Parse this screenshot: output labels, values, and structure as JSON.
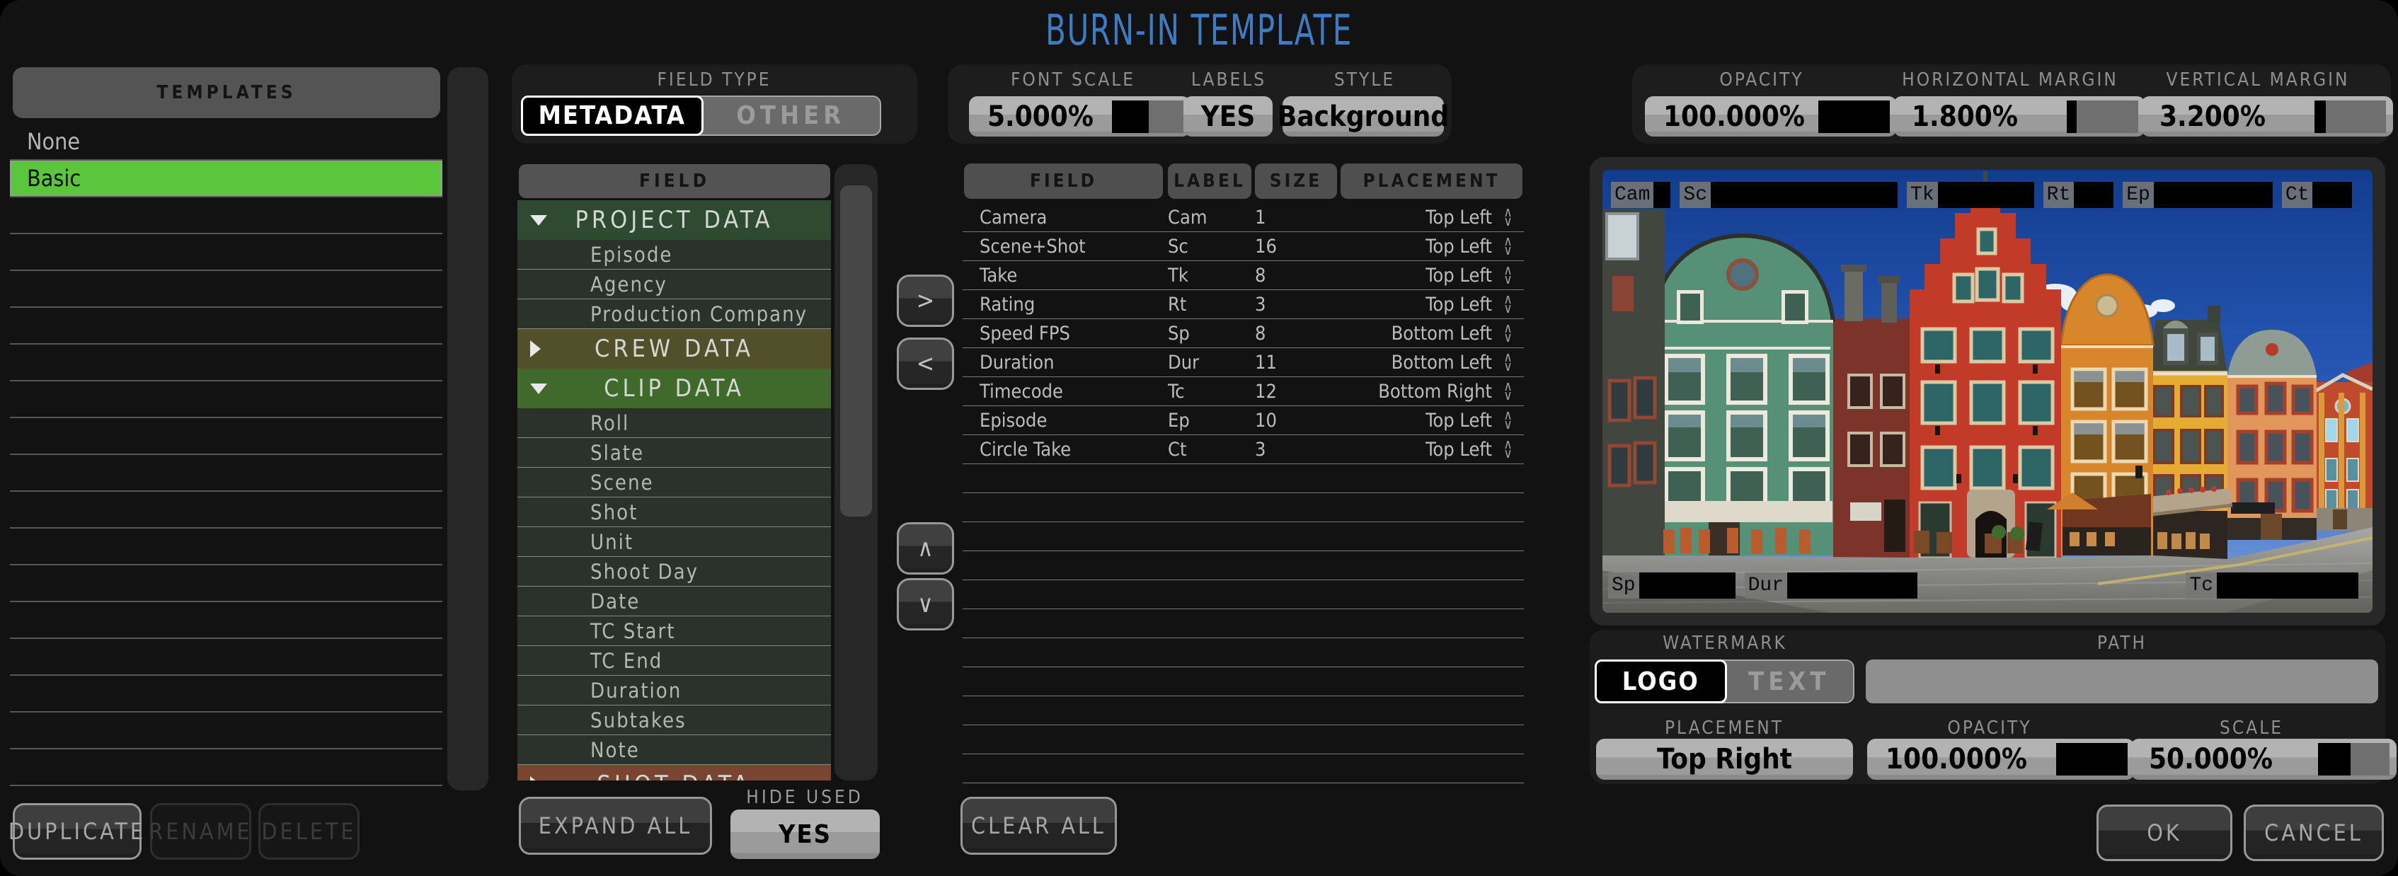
{
  "title": "BURN-IN TEMPLATE",
  "colors": {
    "accent_blue": "#3d7cc2",
    "selection_green": "#5bc63c"
  },
  "templates": {
    "header": "TEMPLATES",
    "items": [
      {
        "label": "None",
        "selected": false
      },
      {
        "label": "Basic",
        "selected": true
      }
    ],
    "duplicate": "DUPLICATE",
    "rename": "RENAME",
    "delete": "DELETE"
  },
  "field_type": {
    "label": "FIELD TYPE",
    "metadata": "METADATA",
    "other": "OTHER",
    "selected": "METADATA"
  },
  "settings": {
    "font_scale": {
      "label": "FONT SCALE",
      "value": "5.000%"
    },
    "labels": {
      "label": "LABELS",
      "value": "YES"
    },
    "style": {
      "label": "STYLE",
      "value": "Background"
    },
    "opacity": {
      "label": "OPACITY",
      "value": "100.000%"
    },
    "horizontal_margin": {
      "label": "HORIZONTAL MARGIN",
      "value": "1.800%"
    },
    "vertical_margin": {
      "label": "VERTICAL MARGIN",
      "value": "3.200%"
    }
  },
  "field_tree": {
    "header": "FIELD",
    "groups": [
      {
        "label": "PROJECT DATA",
        "expanded": true,
        "color": "#2e4a31",
        "items": [
          "Episode",
          "Agency",
          "Production Company"
        ]
      },
      {
        "label": "CREW DATA",
        "expanded": false,
        "color": "#52502a",
        "items": []
      },
      {
        "label": "CLIP DATA",
        "expanded": true,
        "color": "#3f6a2c",
        "items": [
          "Roll",
          "Slate",
          "Scene",
          "Shot",
          "Unit",
          "Shoot Day",
          "Date",
          "TC Start",
          "TC End",
          "Duration",
          "Subtakes",
          "Note"
        ]
      },
      {
        "label": "SHOT DATA",
        "expanded": false,
        "color": "#7a4530",
        "items": []
      }
    ],
    "expand_all": "EXPAND ALL",
    "hide_used_label": "HIDE USED",
    "hide_used_value": "YES"
  },
  "transfer": {
    "add": ">",
    "remove": "<",
    "up": "∧",
    "down": "∨"
  },
  "used_fields": {
    "columns": [
      "FIELD",
      "LABEL",
      "SIZE",
      "PLACEMENT"
    ],
    "rows": [
      {
        "field": "Camera",
        "label": "Cam",
        "size": "1",
        "placement": "Top Left"
      },
      {
        "field": "Scene+Shot",
        "label": "Sc",
        "size": "16",
        "placement": "Top Left"
      },
      {
        "field": "Take",
        "label": "Tk",
        "size": "8",
        "placement": "Top Left"
      },
      {
        "field": "Rating",
        "label": "Rt",
        "size": "3",
        "placement": "Top Left"
      },
      {
        "field": "Speed FPS",
        "label": "Sp",
        "size": "8",
        "placement": "Bottom Left"
      },
      {
        "field": "Duration",
        "label": "Dur",
        "size": "11",
        "placement": "Bottom Left"
      },
      {
        "field": "Timecode",
        "label": "Tc",
        "size": "12",
        "placement": "Bottom Right"
      },
      {
        "field": "Episode",
        "label": "Ep",
        "size": "10",
        "placement": "Top Left"
      },
      {
        "field": "Circle Take",
        "label": "Ct",
        "size": "3",
        "placement": "Top Left"
      }
    ],
    "clear_all": "CLEAR ALL"
  },
  "preview": {
    "burnins_top": [
      {
        "label": "Cam",
        "size": 1
      },
      {
        "label": "Sc",
        "size": 16
      },
      {
        "label": "Tk",
        "size": 8
      },
      {
        "label": "Rt",
        "size": 3
      },
      {
        "label": "Ep",
        "size": 10
      },
      {
        "label": "Ct",
        "size": 3
      }
    ],
    "burnins_bottom_left": [
      {
        "label": "Sp",
        "size": 8
      },
      {
        "label": "Dur",
        "size": 11
      }
    ],
    "burnins_bottom_right": [
      {
        "label": "Tc",
        "size": 12
      }
    ]
  },
  "watermark": {
    "header": "WATERMARK",
    "logo": "LOGO",
    "text": "TEXT",
    "selected": "LOGO",
    "path_label": "PATH",
    "path_value": "",
    "placement": {
      "label": "PLACEMENT",
      "value": "Top Right"
    },
    "opacity": {
      "label": "OPACITY",
      "value": "100.000%"
    },
    "scale": {
      "label": "SCALE",
      "value": "50.000%"
    }
  },
  "actions": {
    "ok": "OK",
    "cancel": "CANCEL"
  }
}
